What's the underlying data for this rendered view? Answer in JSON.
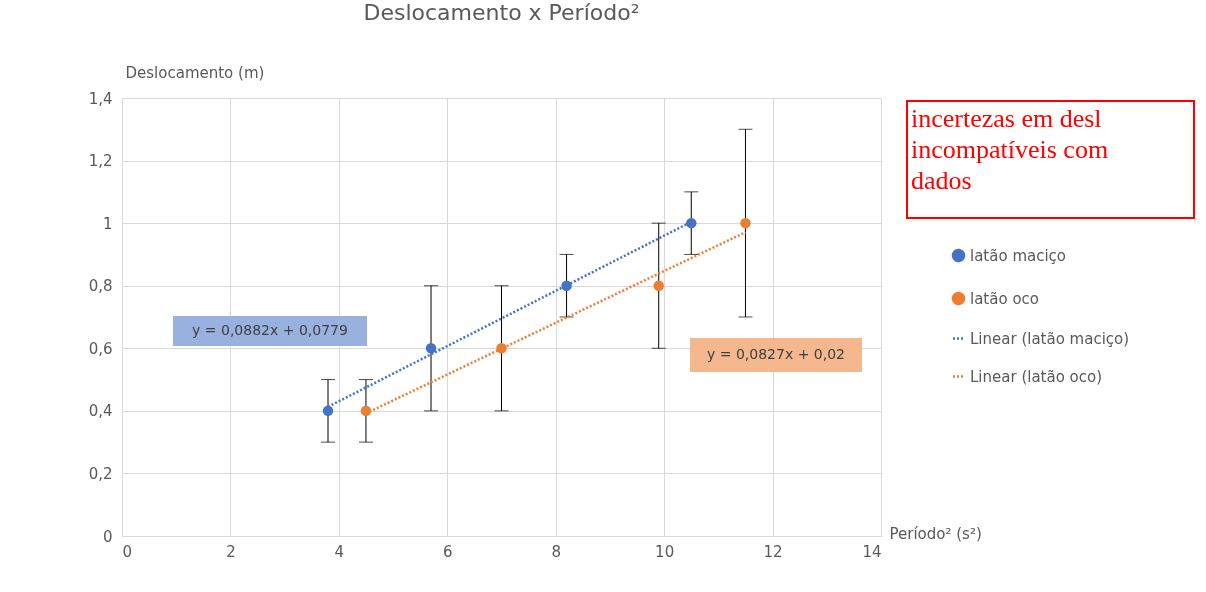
{
  "chart_data": {
    "type": "scatter",
    "title": "Deslocamento x Período²",
    "xlabel": "Período² (s²)",
    "ylabel": "Deslocamento (m)",
    "xlim": [
      0,
      14
    ],
    "xticks": [
      0,
      2,
      4,
      6,
      8,
      10,
      12,
      14
    ],
    "ylim": [
      0,
      1.4
    ],
    "yticks": [
      {
        "value": 0,
        "label": "0"
      },
      {
        "value": 0.2,
        "label": "0,2"
      },
      {
        "value": 0.4,
        "label": "0,4"
      },
      {
        "value": 0.6,
        "label": "0,6"
      },
      {
        "value": 0.8,
        "label": "0,8"
      },
      {
        "value": 1,
        "label": "1"
      },
      {
        "value": 1.2,
        "label": "1,2"
      },
      {
        "value": 1.4,
        "label": "1,4"
      }
    ],
    "grid": true,
    "legend": "right",
    "marker": "circle",
    "series": [
      {
        "name": "latão maciço",
        "color": "#4472c4",
        "x": [
          3.8,
          5.7,
          8.2,
          10.5
        ],
        "values": [
          0.4,
          0.6,
          0.8,
          1.0
        ],
        "errors": [
          0.1,
          0.2,
          0.1,
          0.1
        ]
      },
      {
        "name": "latão oco",
        "color": "#ed7d31",
        "x": [
          4.5,
          7.0,
          9.9,
          11.5
        ],
        "values": [
          0.4,
          0.6,
          0.8,
          1.0
        ],
        "errors": [
          0.1,
          0.2,
          0.2,
          0.3
        ]
      },
      {
        "name": "Linear (latão maciço)",
        "color": "#4472c4",
        "type": "line",
        "marker": "none",
        "line_style": "dotted",
        "x": [
          3.8,
          10.5
        ],
        "values": [
          0.413,
          1.004
        ]
      },
      {
        "name": "Linear (latão oco)",
        "color": "#ed7d31",
        "type": "line",
        "marker": "none",
        "line_style": "dotted",
        "x": [
          4.5,
          11.5
        ],
        "values": [
          0.392,
          0.971
        ]
      }
    ],
    "annotations": [
      "y = 0,0882x + 0,0779",
      "y = 0,0827x + 0,02",
      "incertezas em desl\nincompatíveis com\ndados"
    ]
  }
}
